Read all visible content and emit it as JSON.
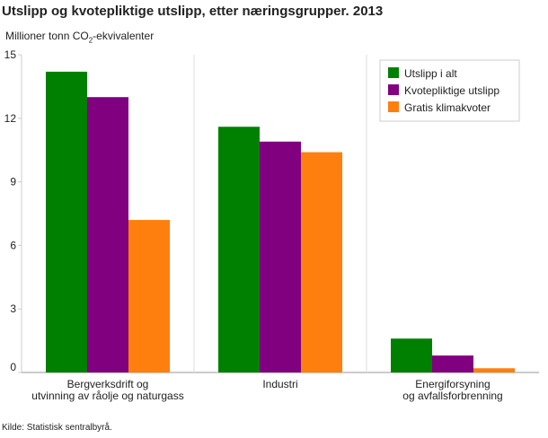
{
  "title": "Utslipp og kvotepliktige utslipp, etter næringsgrupper. 2013",
  "ylabel_main": "Millioner tonn CO",
  "ylabel_sub": "2",
  "ylabel_rest": "-ekvivalenter",
  "source": "Kilde: Statistisk sentralbyrå.",
  "chart_data": {
    "type": "bar",
    "categories": [
      [
        "Bergverksdrift og",
        "utvinning av råolje og naturgass"
      ],
      [
        "Industri"
      ],
      [
        "Energiforsyning",
        "og avfallsforbrenning"
      ]
    ],
    "series": [
      {
        "name": "Utslipp i alt",
        "color": "#008000",
        "values": [
          14.2,
          11.6,
          1.6
        ]
      },
      {
        "name": "Kvotepliktige utslipp",
        "color": "#800080",
        "values": [
          13.0,
          10.9,
          0.8
        ]
      },
      {
        "name": "Gratis klimakvoter",
        "color": "#ff7f0e",
        "values": [
          7.2,
          10.4,
          0.2
        ]
      }
    ],
    "ylim": [
      0,
      15
    ],
    "yticks": [
      0,
      3,
      6,
      9,
      12,
      15
    ],
    "grid": "vertical category separators",
    "legend_position": "top-right"
  }
}
